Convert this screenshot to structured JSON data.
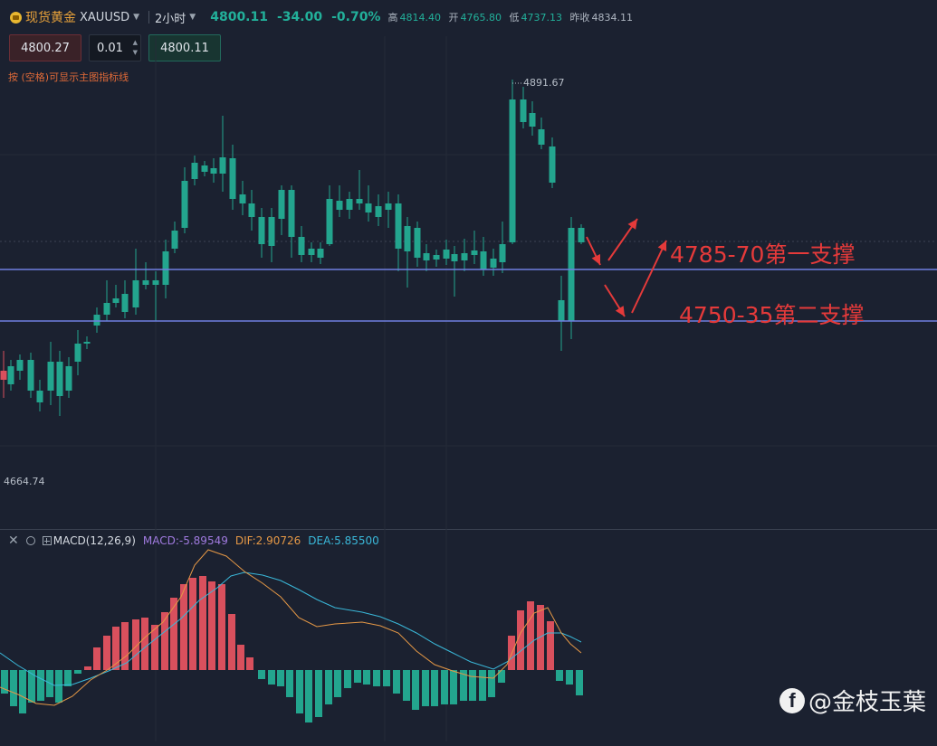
{
  "header": {
    "symbol_name": "现货黄金",
    "symbol_code": "XAUUSD",
    "timeframe": "2小时",
    "last_price": "4800.11",
    "change": "-34.00",
    "change_pct": "-0.70%",
    "high_label": "高",
    "high": "4814.40",
    "open_label": "开",
    "open": "4765.80",
    "low_label": "低",
    "low": "4737.13",
    "prev_close_label": "昨收",
    "prev_close": "4834.11"
  },
  "trade": {
    "sell_price": "4800.27",
    "quantity": "0.01",
    "buy_price": "4800.11"
  },
  "hint": "按 (空格)可显示主图指标线",
  "labels": {
    "high_marker": "4891.67",
    "low_marker": "4664.74",
    "support1": "4785-70第一支撑",
    "support2": "4750-35第二支撑"
  },
  "macd": {
    "name": "MACD(12,26,9)",
    "macd_value": "MACD:-5.89549",
    "dif_value": "DIF:2.90726",
    "dea_value": "DEA:5.85500"
  },
  "watermark": "@金枝玉葉",
  "colors": {
    "up": "#d9505d",
    "down": "#23a58e",
    "dif": "#e59846",
    "dea": "#3ab8d9",
    "support_line": "#6f7fe0",
    "annotation": "#e53a3a"
  },
  "icons": [
    "gold-coin-icon",
    "close-icon",
    "settings-icon",
    "expand-icon",
    "facebook-icon"
  ]
}
